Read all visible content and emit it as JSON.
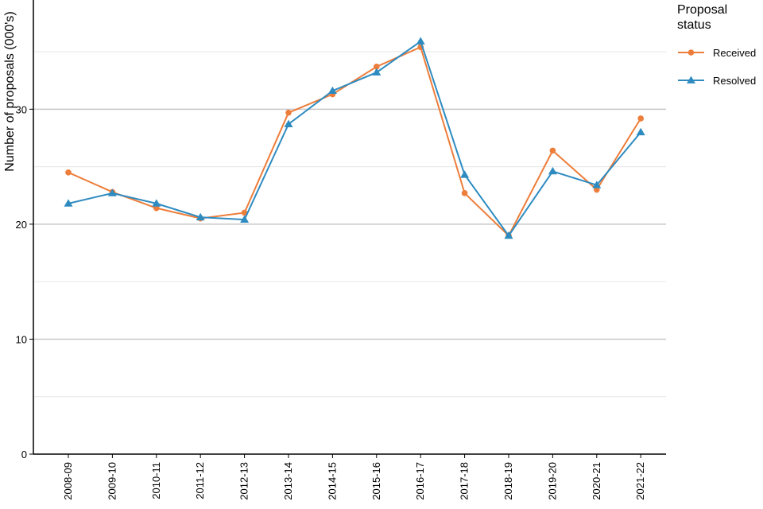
{
  "chart_data": {
    "type": "line",
    "title": "",
    "xlabel": "",
    "ylabel": "Number of proposals (000's)",
    "categories": [
      "2008-09",
      "2009-10",
      "2010-11",
      "2011-12",
      "2012-13",
      "2013-14",
      "2014-15",
      "2015-16",
      "2016-17",
      "2017-18",
      "2018-19",
      "2019-20",
      "2020-21",
      "2021-22"
    ],
    "ylim": [
      0,
      39.5
    ],
    "yticks": [
      0,
      10,
      20,
      30
    ],
    "grid": true,
    "legend_position": "top-right",
    "legend_title": "Proposal status",
    "series": [
      {
        "name": "Received",
        "color": "#ED7D3A",
        "marker": "circle",
        "values": [
          24.5,
          22.8,
          21.4,
          20.5,
          21.0,
          29.7,
          31.3,
          33.7,
          35.4,
          22.7,
          19.0,
          26.4,
          23.0,
          29.2
        ]
      },
      {
        "name": "Resolved",
        "color": "#2E8BC0",
        "marker": "triangle",
        "values": [
          21.8,
          22.7,
          21.8,
          20.6,
          20.4,
          28.7,
          31.6,
          33.2,
          35.9,
          24.3,
          19.0,
          24.6,
          23.4,
          28.0
        ]
      }
    ]
  }
}
